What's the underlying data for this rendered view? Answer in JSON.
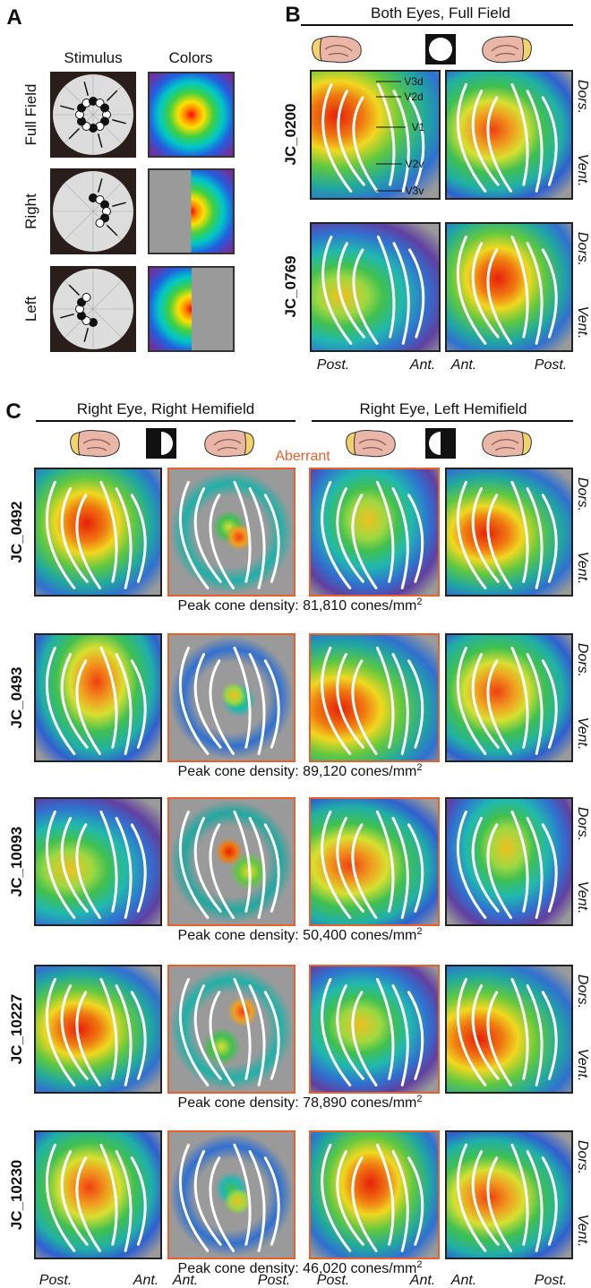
{
  "panel_a": {
    "letter": "A",
    "col_headers": [
      "Stimulus",
      "Colors"
    ],
    "row_labels": [
      "Full Field",
      "Right",
      "Left"
    ]
  },
  "panel_b": {
    "letter": "B",
    "title": "Both Eyes, Full Field",
    "subjects": [
      "JC_0200",
      "JC_0769"
    ],
    "area_labels": [
      "V3d",
      "V2d",
      "V1",
      "V2v",
      "V3v"
    ],
    "side_labels": [
      "Dors.",
      "Vent."
    ],
    "bottom_labels": [
      "Post.",
      "Ant.",
      "Ant.",
      "Post."
    ]
  },
  "panel_c": {
    "letter": "C",
    "titles": [
      "Right Eye, Right Hemifield",
      "Right Eye, Left Hemifield"
    ],
    "aberrant": "Aberrant",
    "rows": [
      {
        "subject": "JC_0492",
        "density": "Peak cone density: 81,810 cones/mm",
        "density_sup": "2"
      },
      {
        "subject": "JC_0493",
        "density": "Peak cone density: 89,120 cones/mm",
        "density_sup": "2"
      },
      {
        "subject": "JC_10093",
        "density": "Peak cone density: 50,400 cones/mm",
        "density_sup": "2"
      },
      {
        "subject": "JC_10227",
        "density": "Peak cone density: 78,890 cones/mm",
        "density_sup": "2"
      },
      {
        "subject": "JC_10230",
        "density": "Peak cone density: 46,020 cones/mm",
        "density_sup": "2"
      }
    ],
    "side_labels": [
      "Dors.",
      "Vent."
    ],
    "bottom_labels": [
      "Post.",
      "Ant.",
      "Ant.",
      "Post."
    ]
  }
}
